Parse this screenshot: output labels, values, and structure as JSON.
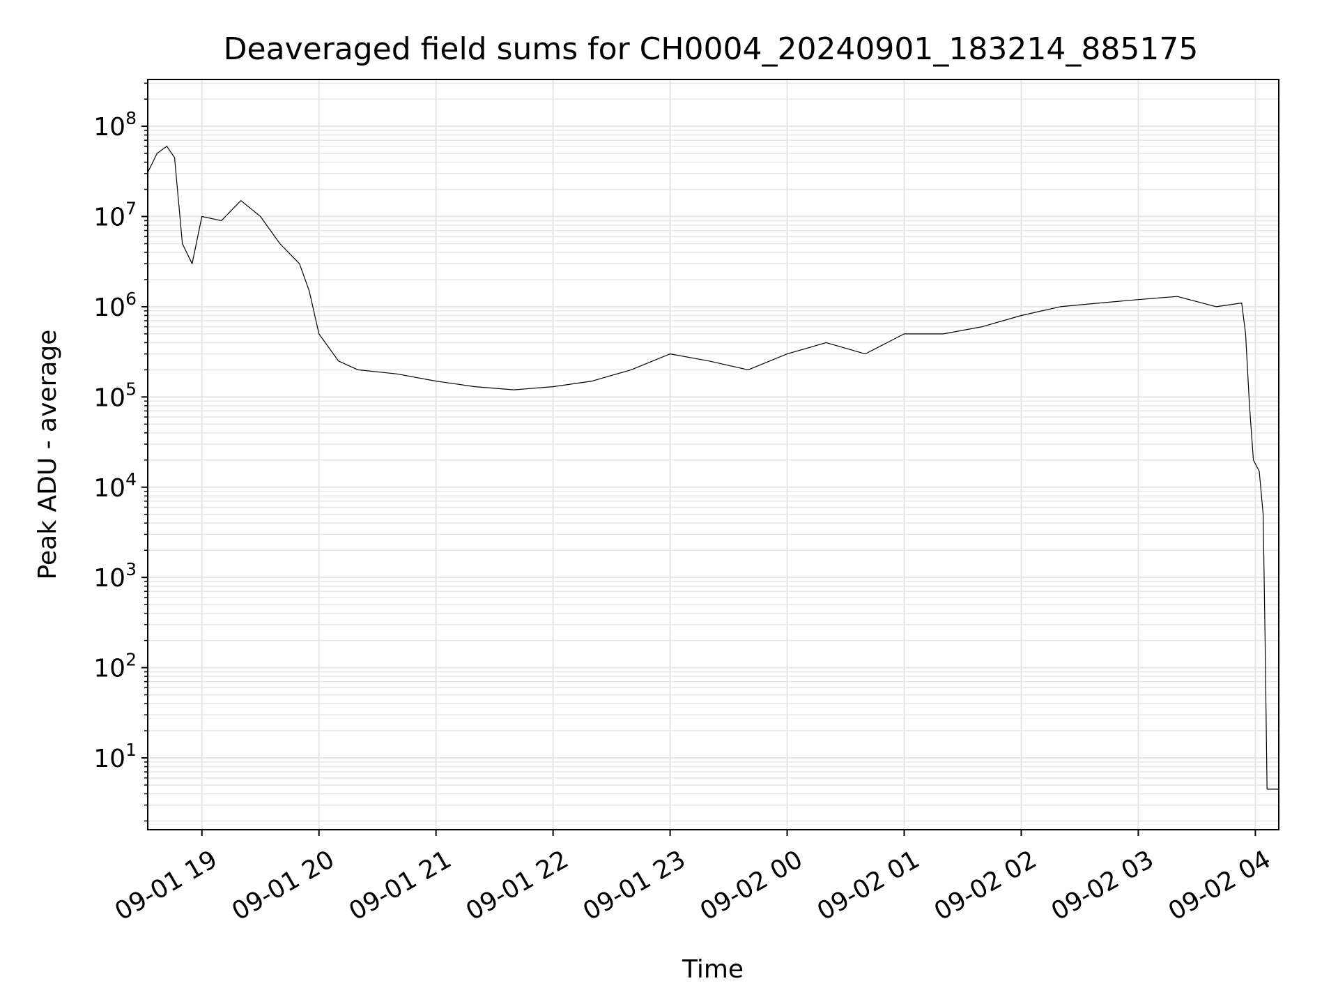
{
  "chart_data": {
    "type": "line",
    "title": "Deaveraged field sums for CH0004_20240901_183214_885175",
    "xlabel": "Time",
    "ylabel": "Peak ADU - average",
    "yscale": "log",
    "ylim": [
      1.6,
      330000000
    ],
    "xlim": [
      "2024-09-01 18:32:14",
      "2024-09-02 04:12:00"
    ],
    "grid": true,
    "line_color": "#000000",
    "grid_color": "#e6e6e6",
    "x_ticks": [
      {
        "t": "2024-09-01 19:00",
        "label": "09-01 19"
      },
      {
        "t": "2024-09-01 20:00",
        "label": "09-01 20"
      },
      {
        "t": "2024-09-01 21:00",
        "label": "09-01 21"
      },
      {
        "t": "2024-09-01 22:00",
        "label": "09-01 22"
      },
      {
        "t": "2024-09-01 23:00",
        "label": "09-01 23"
      },
      {
        "t": "2024-09-02 00:00",
        "label": "09-02 00"
      },
      {
        "t": "2024-09-02 01:00",
        "label": "09-02 01"
      },
      {
        "t": "2024-09-02 02:00",
        "label": "09-02 02"
      },
      {
        "t": "2024-09-02 03:00",
        "label": "09-02 03"
      },
      {
        "t": "2024-09-02 04:00",
        "label": "09-02 04"
      }
    ],
    "y_ticks": [
      {
        "value": 10,
        "base": "10",
        "exp": "1"
      },
      {
        "value": 100,
        "base": "10",
        "exp": "2"
      },
      {
        "value": 1000,
        "base": "10",
        "exp": "3"
      },
      {
        "value": 10000,
        "base": "10",
        "exp": "4"
      },
      {
        "value": 100000,
        "base": "10",
        "exp": "5"
      },
      {
        "value": 1000000,
        "base": "10",
        "exp": "6"
      },
      {
        "value": 10000000,
        "base": "10",
        "exp": "7"
      },
      {
        "value": 100000000,
        "base": "10",
        "exp": "8"
      }
    ],
    "series": [
      {
        "values": [
          [
            "2024-09-01 18:32",
            30000000
          ],
          [
            "2024-09-01 18:37",
            50000000
          ],
          [
            "2024-09-01 18:42",
            60000000
          ],
          [
            "2024-09-01 18:46",
            45000000
          ],
          [
            "2024-09-01 18:50",
            5000000
          ],
          [
            "2024-09-01 18:55",
            3000000
          ],
          [
            "2024-09-01 19:00",
            10000000
          ],
          [
            "2024-09-01 19:10",
            9000000
          ],
          [
            "2024-09-01 19:20",
            15000000
          ],
          [
            "2024-09-01 19:30",
            10000000
          ],
          [
            "2024-09-01 19:40",
            5000000
          ],
          [
            "2024-09-01 19:50",
            3000000
          ],
          [
            "2024-09-01 19:55",
            1500000
          ],
          [
            "2024-09-01 20:00",
            500000
          ],
          [
            "2024-09-01 20:10",
            250000
          ],
          [
            "2024-09-01 20:20",
            200000
          ],
          [
            "2024-09-01 20:40",
            180000
          ],
          [
            "2024-09-01 21:00",
            150000
          ],
          [
            "2024-09-01 21:20",
            130000
          ],
          [
            "2024-09-01 21:40",
            120000
          ],
          [
            "2024-09-01 22:00",
            130000
          ],
          [
            "2024-09-01 22:20",
            150000
          ],
          [
            "2024-09-01 22:40",
            200000
          ],
          [
            "2024-09-01 23:00",
            300000
          ],
          [
            "2024-09-01 23:20",
            250000
          ],
          [
            "2024-09-01 23:40",
            200000
          ],
          [
            "2024-09-02 00:00",
            300000
          ],
          [
            "2024-09-02 00:20",
            400000
          ],
          [
            "2024-09-02 00:40",
            300000
          ],
          [
            "2024-09-02 01:00",
            500000
          ],
          [
            "2024-09-02 01:20",
            500000
          ],
          [
            "2024-09-02 01:40",
            600000
          ],
          [
            "2024-09-02 02:00",
            800000
          ],
          [
            "2024-09-02 02:20",
            1000000
          ],
          [
            "2024-09-02 02:40",
            1100000
          ],
          [
            "2024-09-02 03:00",
            1200000
          ],
          [
            "2024-09-02 03:20",
            1300000
          ],
          [
            "2024-09-02 03:40",
            1000000
          ],
          [
            "2024-09-02 03:53",
            1100000
          ],
          [
            "2024-09-02 03:55",
            500000
          ],
          [
            "2024-09-02 03:57",
            80000
          ],
          [
            "2024-09-02 03:59",
            20000
          ],
          [
            "2024-09-02 04:02",
            15000
          ],
          [
            "2024-09-02 04:04",
            5000
          ],
          [
            "2024-09-02 04:05",
            200
          ],
          [
            "2024-09-02 04:06",
            4.5
          ],
          [
            "2024-09-02 04:12",
            4.5
          ]
        ]
      }
    ]
  }
}
